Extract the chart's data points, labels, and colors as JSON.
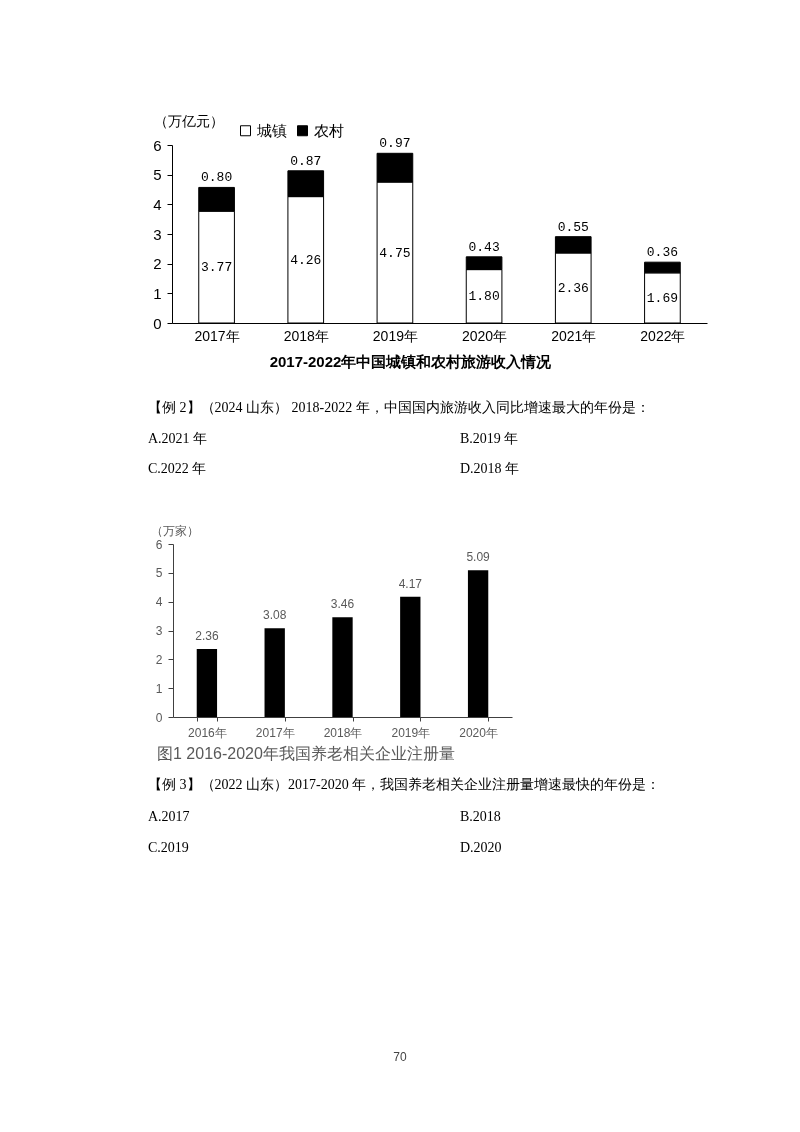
{
  "chart_data": [
    {
      "type": "bar",
      "title": "2017-2022年中国城镇和农村旅游收入情况",
      "ylabel": "（万亿元）",
      "categories": [
        "2017年",
        "2018年",
        "2019年",
        "2020年",
        "2021年",
        "2022年"
      ],
      "stacked": true,
      "series": [
        {
          "name": "城镇",
          "color": "#ffffff",
          "values": [
            3.77,
            4.26,
            4.75,
            1.8,
            2.36,
            1.69
          ],
          "value_labels": [
            "3.77",
            "4.26",
            "4.75",
            "1.80",
            "2.36",
            "1.69"
          ]
        },
        {
          "name": "农村",
          "color": "#000000",
          "values": [
            0.8,
            0.87,
            0.97,
            0.43,
            0.55,
            0.36
          ],
          "value_labels": [
            "0.80",
            "0.87",
            "0.97",
            "0.43",
            "0.55",
            "0.36"
          ]
        }
      ],
      "ylim": [
        0,
        6
      ],
      "yticks": [
        0,
        1,
        2,
        3,
        4,
        5,
        6
      ],
      "legend": "top left",
      "annotations": [
        "【例 2】（2024 山东） 2018-2022 年，中国国内旅游收入同比增速最大的年份是：",
        "A.2021 年",
        "B.2019 年",
        "C.2022 年",
        "D.2018 年"
      ]
    },
    {
      "type": "bar",
      "title": "图1 2016-2020年我国养老相关企业注册量",
      "ylabel": "（万家）",
      "categories": [
        "2016年",
        "2017年",
        "2018年",
        "2019年",
        "2020年"
      ],
      "values": [
        2.36,
        3.08,
        3.46,
        4.17,
        5.09
      ],
      "color": "#000000",
      "data_labels": true,
      "ylim": [
        0,
        6
      ],
      "yticks": [
        0,
        1,
        2,
        3,
        4,
        5,
        6
      ],
      "annotations": [
        "【例 3】（2022 山东）2017-2020 年，我国养老相关企业注册量增速最快的年份是：",
        "A.2017",
        "B.2018",
        "C.2019",
        "D.2020",
        "70"
      ]
    }
  ]
}
